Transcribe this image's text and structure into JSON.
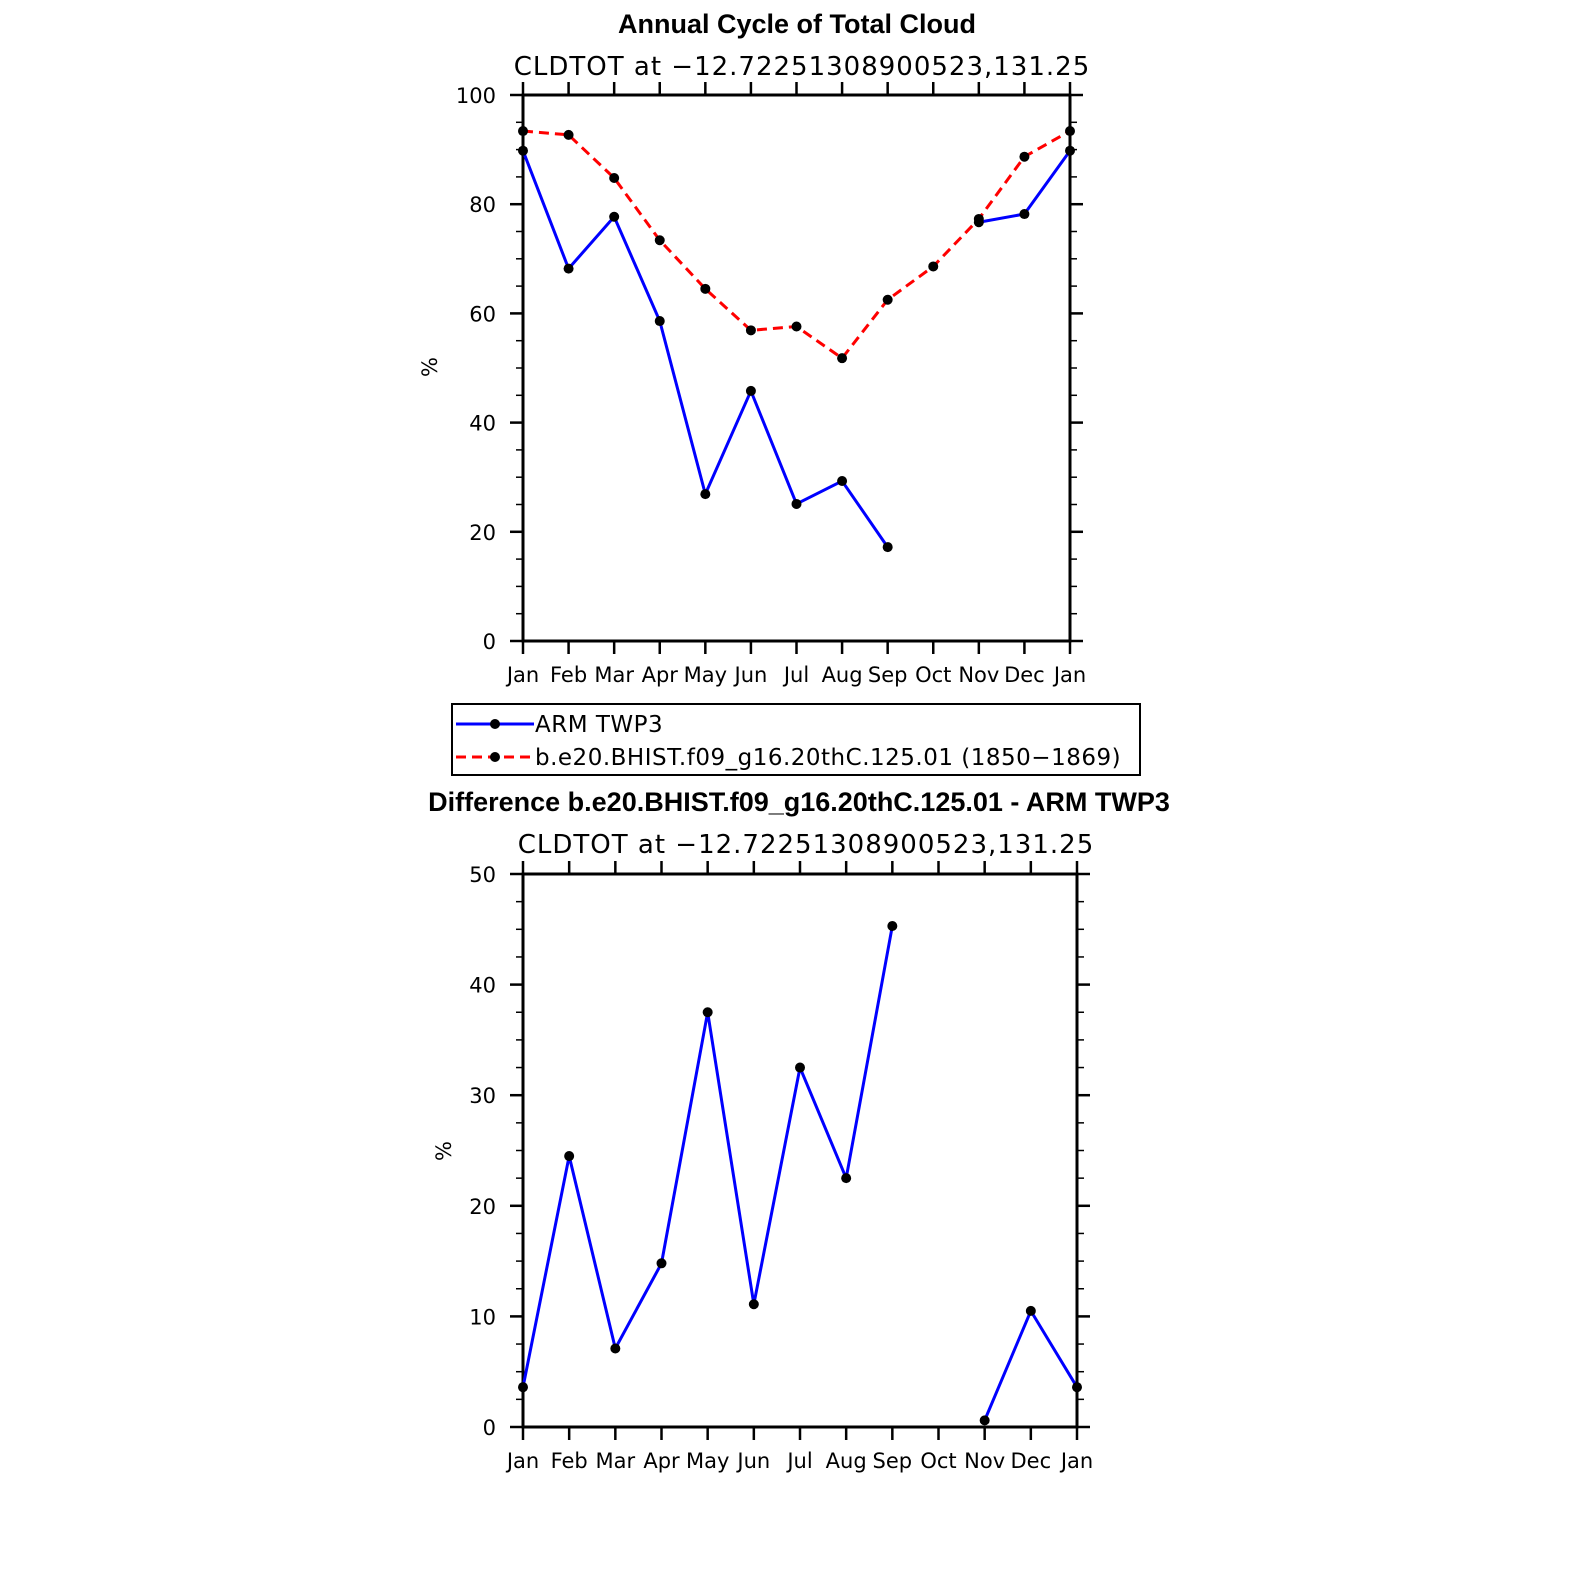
{
  "colors": {
    "obs": "#0000ff",
    "model": "#ff0000",
    "marker": "#000000"
  },
  "legend": {
    "items": [
      {
        "label": "ARM TWP3",
        "color": "#0000ff",
        "style": "solid"
      },
      {
        "label": "b.e20.BHIST.f09_g16.20thC.125.01 (1850−1869)",
        "color": "#ff0000",
        "style": "dashed"
      }
    ]
  },
  "chart_data": [
    {
      "type": "line",
      "title": "Annual Cycle of Total Cloud",
      "subtitle": "CLDTOT at −12.72251308900523,131.25",
      "xlabel": "",
      "ylabel": "%",
      "ylim": [
        0,
        100
      ],
      "yticks": [
        "0",
        "20",
        "40",
        "60",
        "80",
        "100"
      ],
      "categories": [
        "Jan",
        "Feb",
        "Mar",
        "Apr",
        "May",
        "Jun",
        "Jul",
        "Aug",
        "Sep",
        "Oct",
        "Nov",
        "Dec",
        "Jan"
      ],
      "grid": false,
      "legend_position": "bottom",
      "series": [
        {
          "name": "ARM TWP3",
          "color": "#0000ff",
          "dashed": false,
          "values": [
            89.8,
            68.2,
            77.7,
            58.6,
            26.9,
            45.8,
            25.1,
            29.3,
            17.2,
            null,
            76.7,
            78.2,
            89.8
          ]
        },
        {
          "name": "b.e20.BHIST.f09_g16.20thC.125.01 (1850−1869)",
          "color": "#ff0000",
          "dashed": true,
          "values": [
            93.4,
            92.7,
            84.8,
            73.4,
            64.5,
            56.9,
            57.6,
            51.8,
            62.5,
            68.6,
            77.3,
            88.7,
            93.4
          ]
        }
      ]
    },
    {
      "type": "line",
      "title": "Difference b.e20.BHIST.f09_g16.20thC.125.01 - ARM TWP3",
      "subtitle": "CLDTOT at −12.72251308900523,131.25",
      "xlabel": "",
      "ylabel": "%",
      "ylim": [
        0,
        50
      ],
      "yticks": [
        "0",
        "10",
        "20",
        "30",
        "40",
        "50"
      ],
      "categories": [
        "Jan",
        "Feb",
        "Mar",
        "Apr",
        "May",
        "Jun",
        "Jul",
        "Aug",
        "Sep",
        "Oct",
        "Nov",
        "Dec",
        "Jan"
      ],
      "grid": false,
      "series": [
        {
          "color": "#0000ff",
          "dashed": false,
          "values": [
            3.6,
            24.5,
            7.1,
            14.8,
            37.5,
            11.1,
            32.5,
            22.5,
            45.3,
            null,
            0.6,
            10.5,
            3.6
          ]
        }
      ]
    }
  ]
}
